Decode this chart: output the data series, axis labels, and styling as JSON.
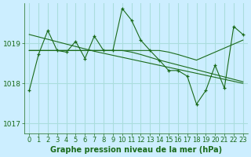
{
  "bg_color": "#cceeff",
  "grid_color": "#aadddd",
  "line_color": "#1a6b1a",
  "xlabel": "Graphe pression niveau de la mer (hPa)",
  "ylim": [
    1016.75,
    1020.0
  ],
  "yticks": [
    1017,
    1018,
    1019
  ],
  "xlim": [
    -0.5,
    23.5
  ],
  "xticks": [
    0,
    1,
    2,
    3,
    4,
    5,
    6,
    7,
    8,
    9,
    10,
    11,
    12,
    13,
    14,
    15,
    16,
    17,
    18,
    19,
    20,
    21,
    22,
    23
  ],
  "series_main": [
    1017.82,
    1018.72,
    1019.32,
    1018.82,
    1018.78,
    1019.05,
    1018.62,
    1019.18,
    1018.82,
    1018.82,
    1019.87,
    1019.58,
    1019.08,
    1018.82,
    1018.58,
    1018.32,
    1018.32,
    1018.18,
    1017.48,
    1017.82,
    1018.45,
    1017.88,
    1019.42,
    1019.22
  ],
  "series_trend_up": [
    1018.82,
    1018.82,
    1018.82,
    1018.82,
    1018.82,
    1018.82,
    1018.82,
    1018.82,
    1018.82,
    1018.82,
    1018.82,
    1018.82,
    1018.82,
    1018.82,
    1018.82,
    1018.78,
    1018.72,
    1018.65,
    1018.58,
    1018.68,
    1018.78,
    1018.88,
    1018.98,
    1019.08
  ],
  "series_flat": [
    1018.82,
    1018.82,
    1018.82,
    1018.82,
    1018.82,
    1018.82,
    1018.82,
    1018.82,
    1018.82,
    1018.82,
    1018.82,
    1018.78,
    1018.72,
    1018.65,
    1018.58,
    1018.52,
    1018.46,
    1018.4,
    1018.34,
    1018.28,
    1018.22,
    1018.16,
    1018.1,
    1018.04
  ],
  "series_decline": [
    1019.22,
    1019.16,
    1019.1,
    1019.04,
    1018.98,
    1018.92,
    1018.86,
    1018.8,
    1018.75,
    1018.7,
    1018.65,
    1018.6,
    1018.55,
    1018.5,
    1018.45,
    1018.4,
    1018.35,
    1018.3,
    1018.25,
    1018.2,
    1018.15,
    1018.1,
    1018.05,
    1018.0
  ],
  "xlabel_fontsize": 7,
  "tick_fontsize": 6
}
